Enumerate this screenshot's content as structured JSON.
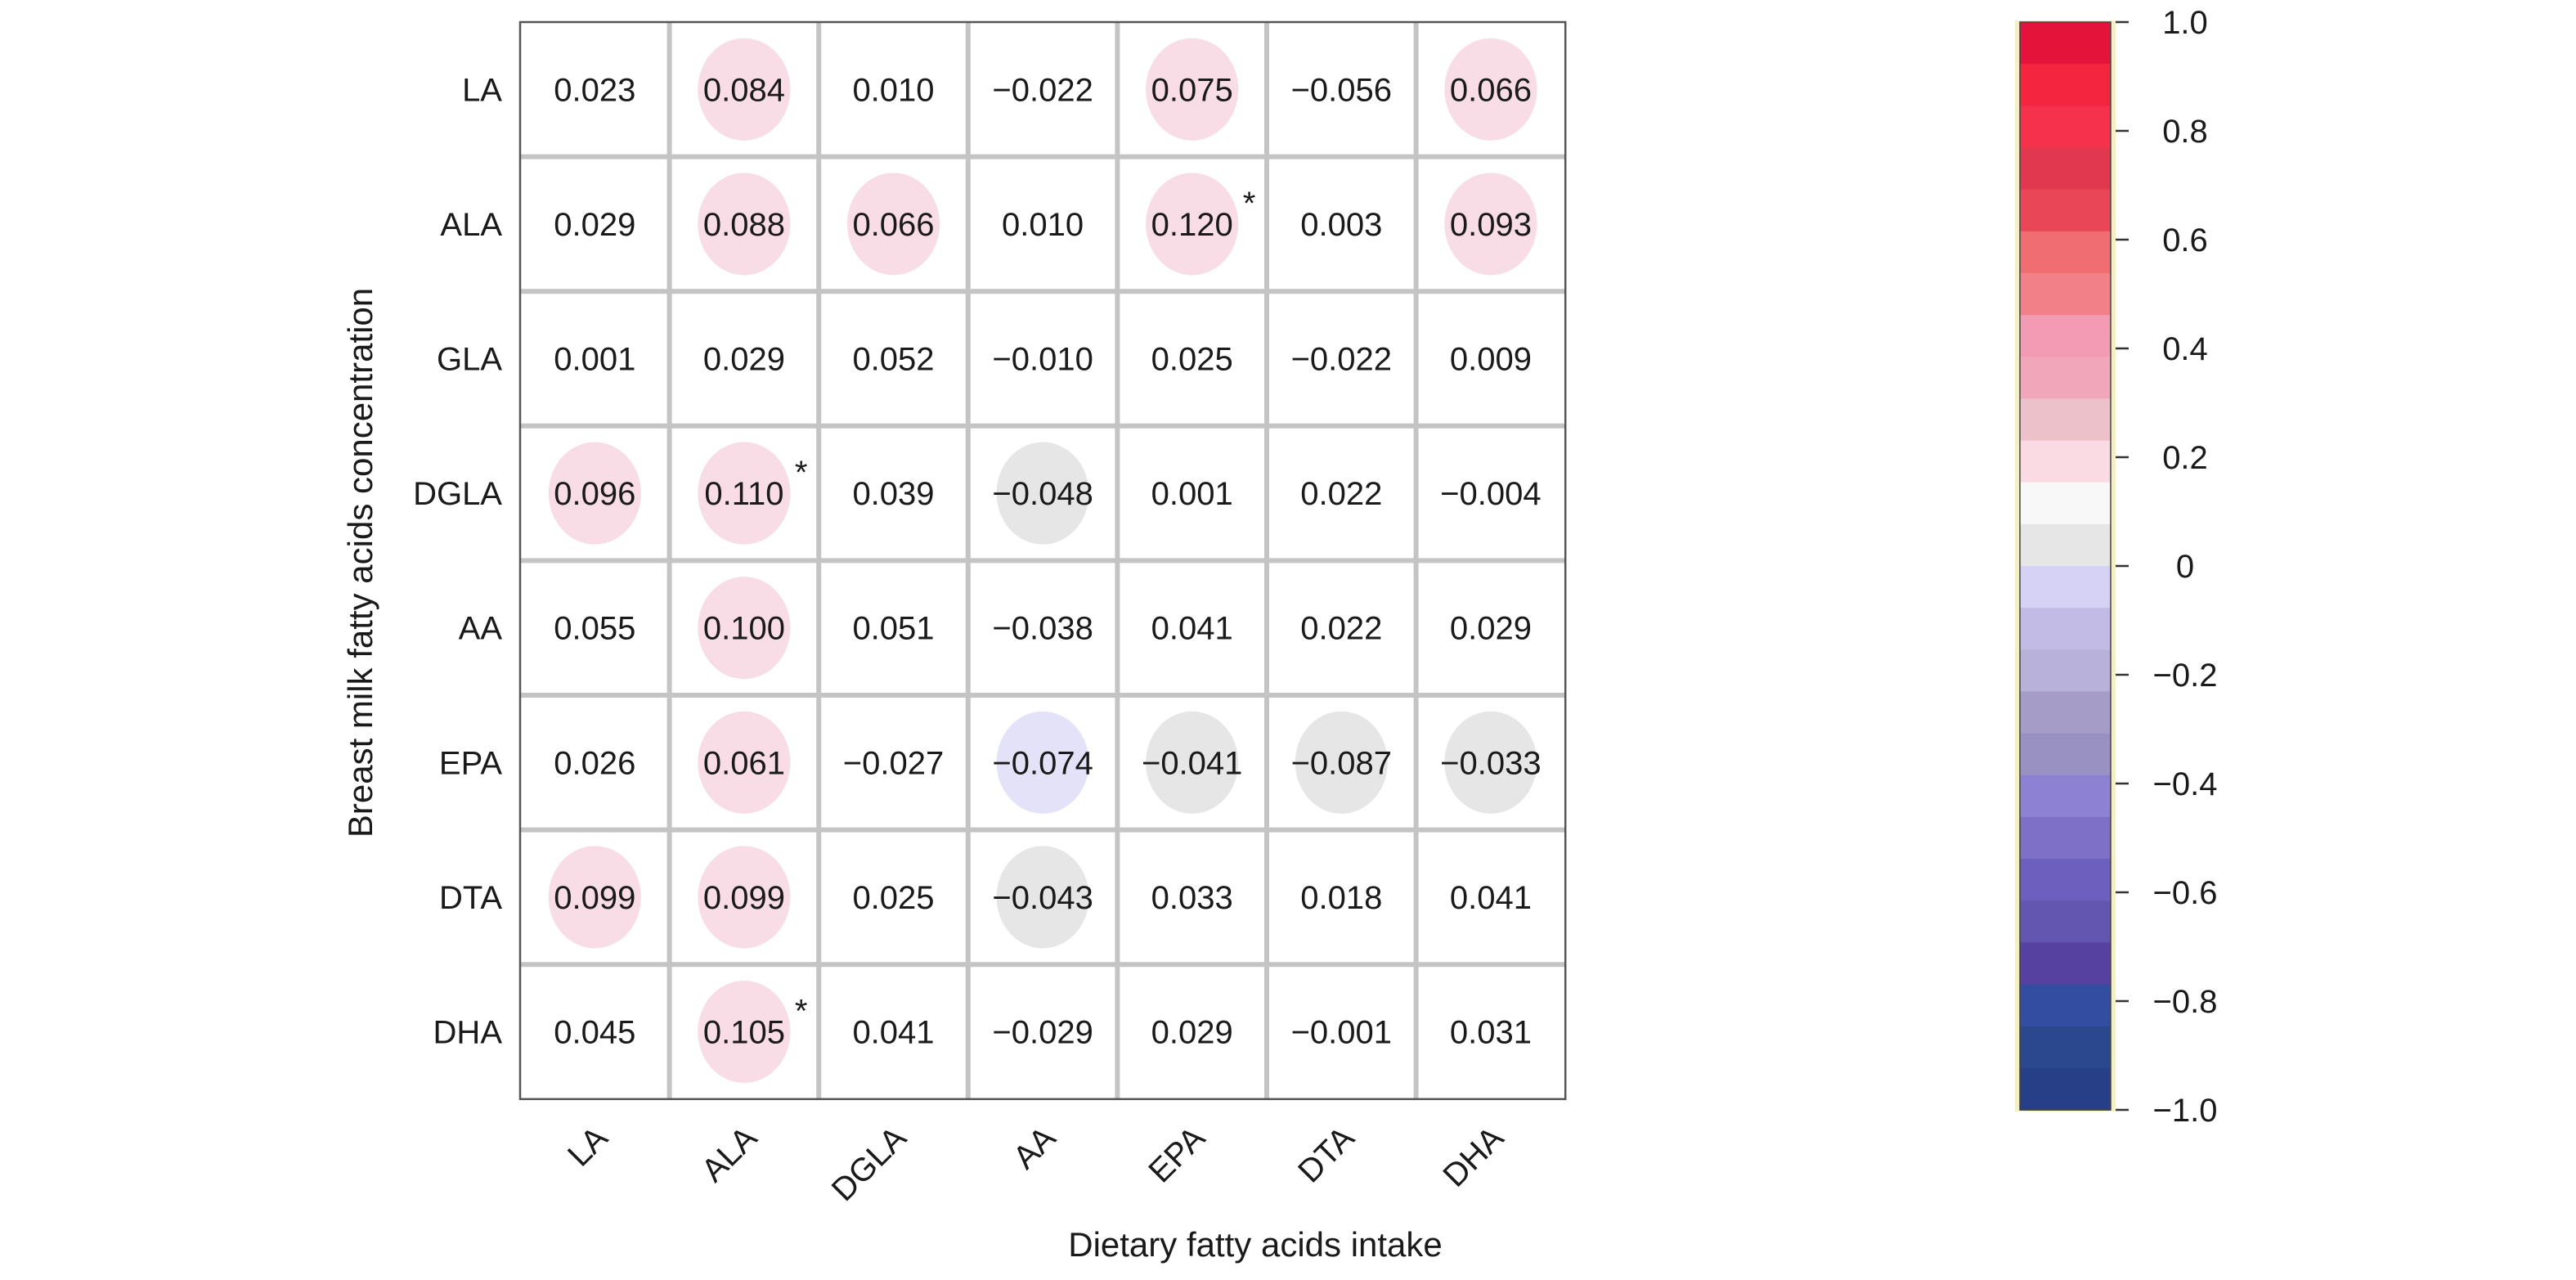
{
  "chart_data": {
    "type": "heatmap",
    "title": "",
    "xlabel": "Dietary fatty acids intake",
    "ylabel": "Breast milk fatty acids concentration",
    "columns": [
      "LA",
      "ALA",
      "DGLA",
      "AA",
      "EPA",
      "DTA",
      "DHA"
    ],
    "rows": [
      "LA",
      "ALA",
      "GLA",
      "DGLA",
      "AA",
      "EPA",
      "DTA",
      "DHA"
    ],
    "values": [
      [
        0.023,
        0.084,
        0.01,
        -0.022,
        0.075,
        -0.056,
        0.066
      ],
      [
        0.029,
        0.088,
        0.066,
        0.01,
        0.12,
        0.003,
        0.093
      ],
      [
        0.001,
        0.029,
        0.052,
        -0.01,
        0.025,
        -0.022,
        0.009
      ],
      [
        0.096,
        0.11,
        0.039,
        -0.048,
        0.001,
        0.022,
        -0.004
      ],
      [
        0.055,
        0.1,
        0.051,
        -0.038,
        0.041,
        0.022,
        0.029
      ],
      [
        0.026,
        0.061,
        -0.027,
        -0.074,
        -0.041,
        -0.087,
        -0.033
      ],
      [
        0.099,
        0.099,
        0.025,
        -0.043,
        0.033,
        0.018,
        0.041
      ],
      [
        0.045,
        0.105,
        0.041,
        -0.029,
        0.029,
        -0.001,
        0.031
      ]
    ],
    "labels": [
      [
        "0.023",
        "0.084",
        "0.010",
        "−0.022",
        "0.075",
        "−0.056",
        "0.066"
      ],
      [
        "0.029",
        "0.088",
        "0.066",
        "0.010",
        "0.120",
        "0.003",
        "0.093"
      ],
      [
        "0.001",
        "0.029",
        "0.052",
        "−0.010",
        "0.025",
        "−0.022",
        "0.009"
      ],
      [
        "0.096",
        "0.110",
        "0.039",
        "−0.048",
        "0.001",
        "0.022",
        "−0.004"
      ],
      [
        "0.055",
        "0.100",
        "0.051",
        "−0.038",
        "0.041",
        "0.022",
        "0.029"
      ],
      [
        "0.026",
        "0.061",
        "−0.027",
        "−0.074",
        "−0.041",
        "−0.087",
        "−0.033"
      ],
      [
        "0.099",
        "0.099",
        "0.025",
        "−0.043",
        "0.033",
        "0.018",
        "0.041"
      ],
      [
        "0.045",
        "0.105",
        "0.041",
        "−0.029",
        "0.029",
        "−0.001",
        "0.031"
      ]
    ],
    "significant": [
      [
        1,
        4
      ],
      [
        3,
        1
      ],
      [
        7,
        1
      ]
    ],
    "significance_marker": "*",
    "ellipses": [
      {
        "row": 0,
        "col": 1,
        "shade": "pink"
      },
      {
        "row": 0,
        "col": 4,
        "shade": "pink"
      },
      {
        "row": 0,
        "col": 6,
        "shade": "pink"
      },
      {
        "row": 1,
        "col": 1,
        "shade": "pink"
      },
      {
        "row": 1,
        "col": 2,
        "shade": "pink"
      },
      {
        "row": 1,
        "col": 4,
        "shade": "pink"
      },
      {
        "row": 1,
        "col": 6,
        "shade": "pink"
      },
      {
        "row": 3,
        "col": 0,
        "shade": "pink"
      },
      {
        "row": 3,
        "col": 1,
        "shade": "pink"
      },
      {
        "row": 3,
        "col": 3,
        "shade": "grey"
      },
      {
        "row": 4,
        "col": 1,
        "shade": "pink"
      },
      {
        "row": 5,
        "col": 1,
        "shade": "pink"
      },
      {
        "row": 5,
        "col": 3,
        "shade": "lavender"
      },
      {
        "row": 5,
        "col": 4,
        "shade": "grey"
      },
      {
        "row": 5,
        "col": 5,
        "shade": "grey"
      },
      {
        "row": 5,
        "col": 6,
        "shade": "grey"
      },
      {
        "row": 6,
        "col": 0,
        "shade": "pink"
      },
      {
        "row": 6,
        "col": 1,
        "shade": "pink"
      },
      {
        "row": 6,
        "col": 3,
        "shade": "grey"
      },
      {
        "row": 7,
        "col": 1,
        "shade": "pink"
      }
    ],
    "shade_colors": {
      "pink": "#f9dde6",
      "grey": "#e6e6e6",
      "lavender": "#e4e2f8"
    },
    "colorbar": {
      "range": [
        -1.0,
        1.0
      ],
      "ticks": [
        1.0,
        0.8,
        0.6,
        0.4,
        0.2,
        0,
        -0.2,
        -0.4,
        -0.6,
        -0.8,
        -1.0
      ],
      "tick_labels": [
        "1.0",
        "0.8",
        "0.6",
        "0.4",
        "0.2",
        "0",
        "−0.2",
        "−0.4",
        "−0.6",
        "−0.8",
        "−1.0"
      ],
      "colors_top_to_bottom": [
        "#e3133a",
        "#f3253f",
        "#f5314b",
        "#e2384f",
        "#e94758",
        "#f06e71",
        "#f28088",
        "#f39bb4",
        "#f2a6b9",
        "#ecc1ca",
        "#fadbe3",
        "#f8f8f8",
        "#e6e6e6",
        "#d6d2f6",
        "#c1bbe5",
        "#b8b2da",
        "#a59dc8",
        "#9a91c3",
        "#8d81d4",
        "#7e70c7",
        "#6d5fbd",
        "#6356b0",
        "#5640a0",
        "#334ea0",
        "#2b488f",
        "#263f87"
      ],
      "frame_color": "#f3f0c8"
    },
    "grid": true,
    "legend": "colorbar-right"
  }
}
